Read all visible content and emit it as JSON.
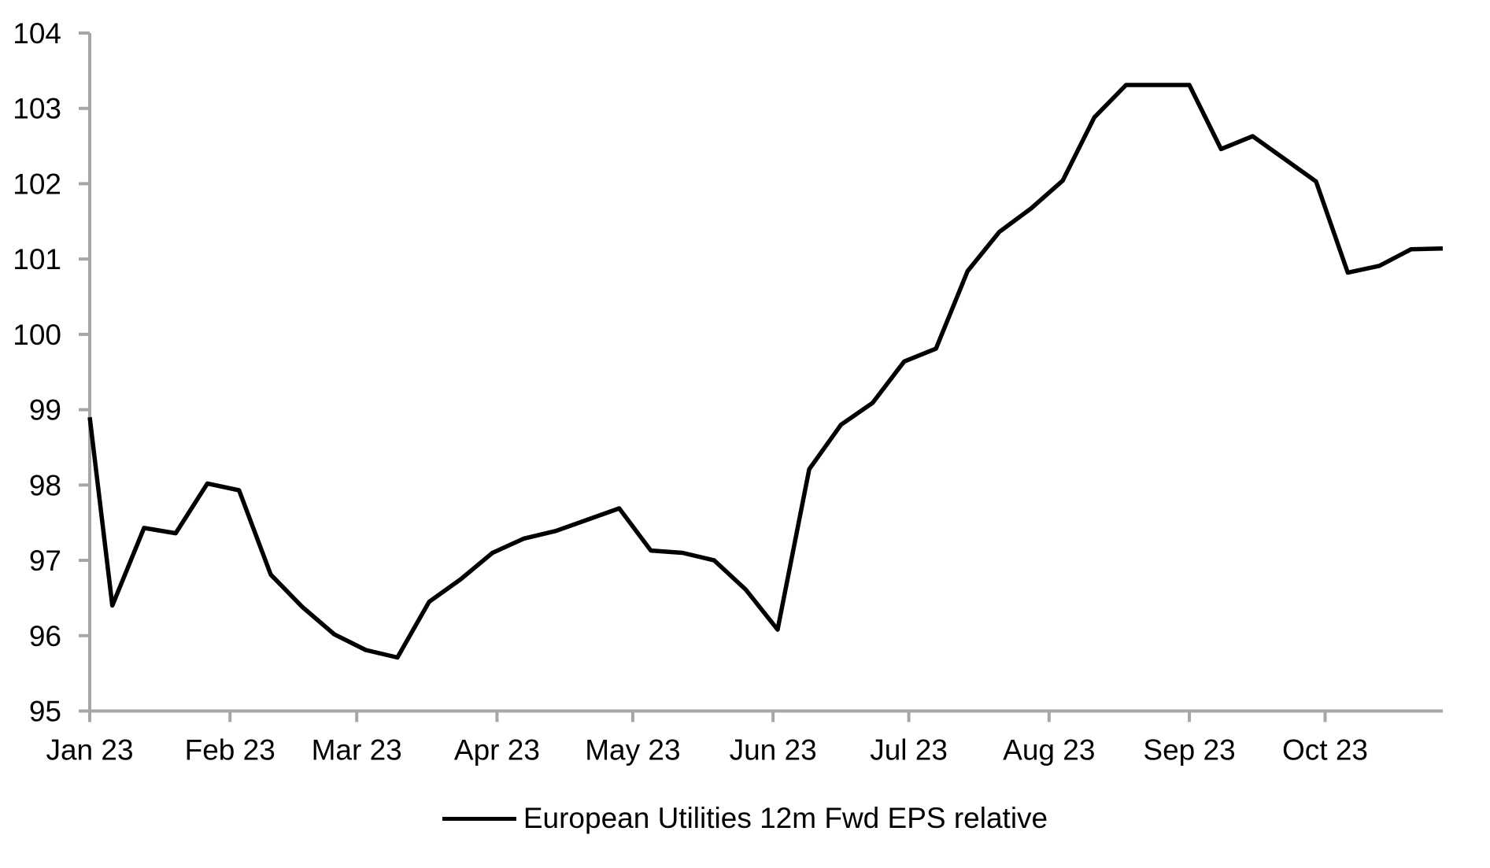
{
  "chart_data": {
    "type": "line",
    "title": "",
    "xlabel": "",
    "ylabel": "",
    "grid": false,
    "background": "#ffffff",
    "colors": {
      "line": "#000000",
      "axis": "#a6a6a6",
      "text": "#000000"
    },
    "ylim": [
      95,
      104
    ],
    "yticks": [
      95,
      96,
      97,
      98,
      99,
      100,
      101,
      102,
      103,
      104
    ],
    "xticks": [
      {
        "label": "Jan 23",
        "date": "2023-01-01"
      },
      {
        "label": "Feb 23",
        "date": "2023-02-01"
      },
      {
        "label": "Mar 23",
        "date": "2023-03-01"
      },
      {
        "label": "Apr 23",
        "date": "2023-04-01"
      },
      {
        "label": "May 23",
        "date": "2023-05-01"
      },
      {
        "label": "Jun 23",
        "date": "2023-06-01"
      },
      {
        "label": "Jul 23",
        "date": "2023-07-01"
      },
      {
        "label": "Aug 23",
        "date": "2023-08-01"
      },
      {
        "label": "Sep 23",
        "date": "2023-09-01"
      },
      {
        "label": "Oct 23",
        "date": "2023-10-01"
      }
    ],
    "x": [
      "2023-01-01",
      "2023-01-06",
      "2023-01-13",
      "2023-01-20",
      "2023-01-27",
      "2023-02-03",
      "2023-02-10",
      "2023-02-17",
      "2023-02-24",
      "2023-03-03",
      "2023-03-10",
      "2023-03-17",
      "2023-03-24",
      "2023-03-31",
      "2023-04-07",
      "2023-04-14",
      "2023-04-21",
      "2023-04-28",
      "2023-05-05",
      "2023-05-12",
      "2023-05-19",
      "2023-05-26",
      "2023-06-02",
      "2023-06-09",
      "2023-06-16",
      "2023-06-23",
      "2023-06-30",
      "2023-07-07",
      "2023-07-14",
      "2023-07-21",
      "2023-07-28",
      "2023-08-04",
      "2023-08-11",
      "2023-08-18",
      "2023-08-25",
      "2023-09-01",
      "2023-09-08",
      "2023-09-15",
      "2023-09-22",
      "2023-09-29",
      "2023-10-06",
      "2023-10-13",
      "2023-10-20",
      "2023-10-27"
    ],
    "series": [
      {
        "name": "European Utilities 12m Fwd EPS relative",
        "values": [
          98.9,
          96.4,
          97.43,
          97.36,
          98.02,
          97.93,
          96.81,
          96.38,
          96.02,
          95.81,
          95.71,
          96.45,
          96.75,
          97.1,
          97.29,
          97.39,
          97.54,
          97.69,
          97.13,
          97.1,
          97.0,
          96.61,
          96.08,
          98.21,
          98.8,
          99.09,
          99.64,
          99.81,
          100.84,
          101.36,
          101.67,
          102.04,
          102.88,
          103.31,
          103.31,
          103.31,
          102.46,
          102.63,
          102.33,
          102.03,
          100.82,
          100.91,
          101.13,
          101.14
        ]
      }
    ],
    "legend_position": "bottom-center"
  },
  "legend": {
    "label": "European Utilities 12m Fwd EPS relative"
  }
}
